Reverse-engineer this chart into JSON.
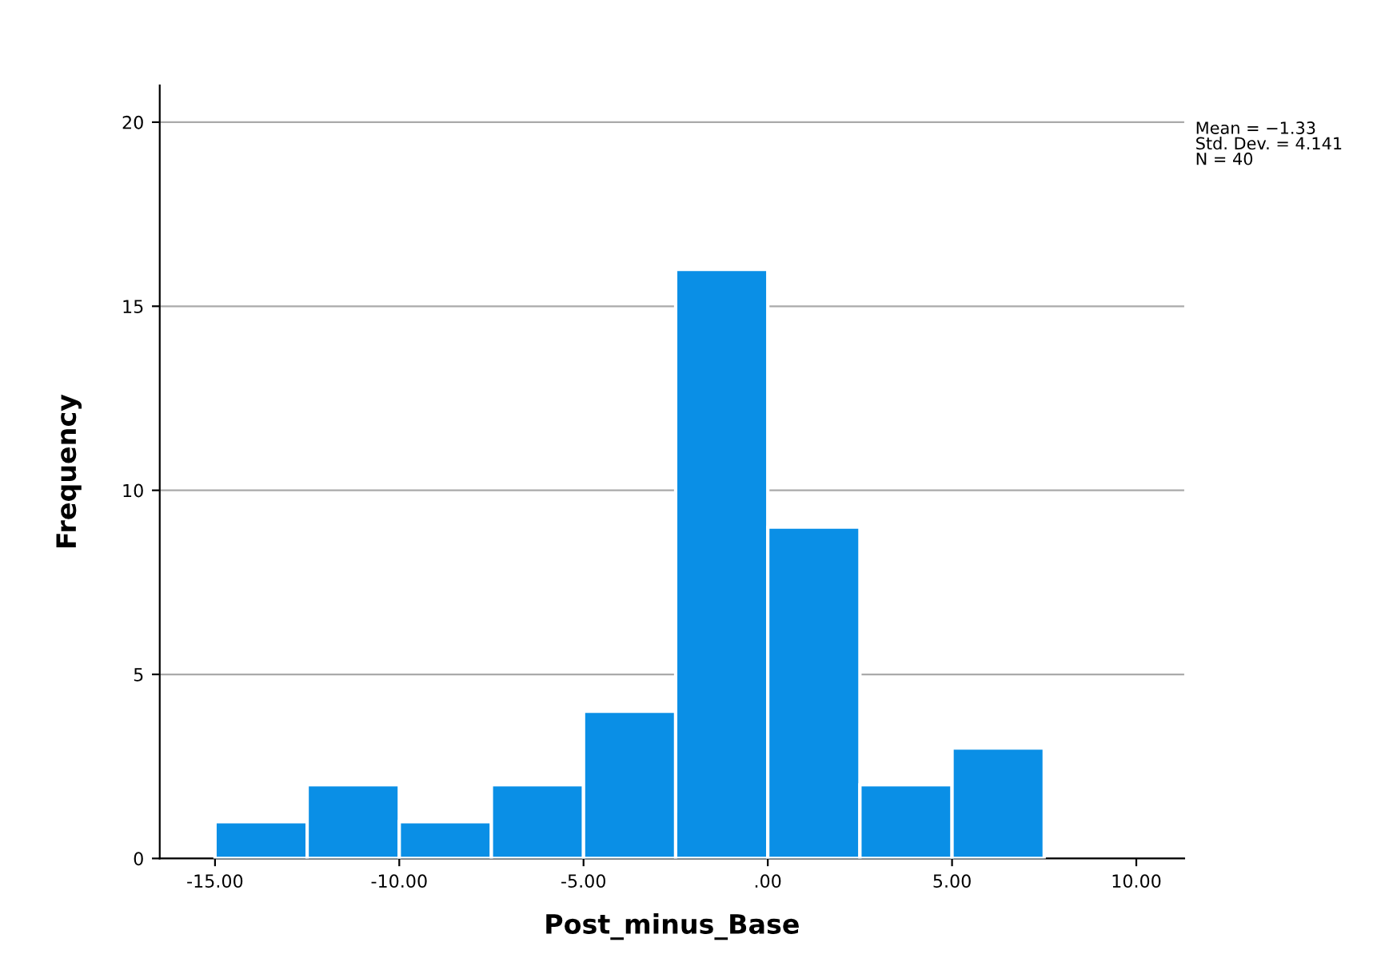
{
  "chart_data": {
    "type": "histogram",
    "xlabel": "Post_minus_Base",
    "ylabel": "Frequency",
    "bins": [
      -15,
      -12.5,
      -10,
      -7.5,
      -5,
      -2.5,
      0,
      2.5,
      5,
      7.5
    ],
    "values": [
      1,
      2,
      1,
      2,
      4,
      16,
      9,
      2,
      3
    ],
    "color": "#0a8fe6",
    "xlim": [
      -16.5,
      11.3
    ],
    "ylim": [
      0,
      21
    ],
    "xticks": [
      {
        "value": -15,
        "label": "-15.00"
      },
      {
        "value": -10,
        "label": "-10.00"
      },
      {
        "value": -5,
        "label": "-5.00"
      },
      {
        "value": 0,
        "label": ".00"
      },
      {
        "value": 5,
        "label": "5.00"
      },
      {
        "value": 10,
        "label": "10.00"
      }
    ],
    "yticks": [
      0,
      5,
      10,
      15,
      20
    ],
    "grid": "y",
    "annotations": [
      "Mean = −1.33\nStd. Dev. = 4.141\nN = 40"
    ]
  }
}
